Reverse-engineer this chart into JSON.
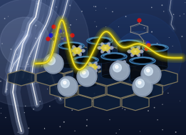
{
  "bg_colors": [
    "#0a1525",
    "#0d1e35",
    "#152a45",
    "#0a1828"
  ],
  "lightning_color": "#ffffff",
  "lightning_glow_color": "#d0e0ff",
  "lightning_glow_wide": "#a0b8e8",
  "voltammogram_color": "#ccbb00",
  "voltammogram_glow": "#e8d800",
  "voltammogram_white": "#ffffff",
  "hexagon_edge_color": "#9a9070",
  "hexagon_face_color": "#1a3050",
  "cylinder_body_dark": "#080e18",
  "cylinder_body_mid": "#101828",
  "cylinder_rim_color": "#2a5a8a",
  "cylinder_rim_bright": "#4a8aba",
  "sphere_base": "#8898b0",
  "sphere_mid": "#a8b8cc",
  "sphere_highlight": "#dce8f4",
  "pom_center_color": "#d4c870",
  "pom_petal_color": "#c0c8e0",
  "pom_petal_dark": "#9090b8",
  "molecule_bond": "#808080",
  "molecule_N": "#1010d0",
  "molecule_O": "#cc1010",
  "molecule_C": "#505050",
  "molecule_H": "#e0e0e0",
  "nebula_color": "#1a3a70",
  "nebula_bright": "#2a5aaa"
}
